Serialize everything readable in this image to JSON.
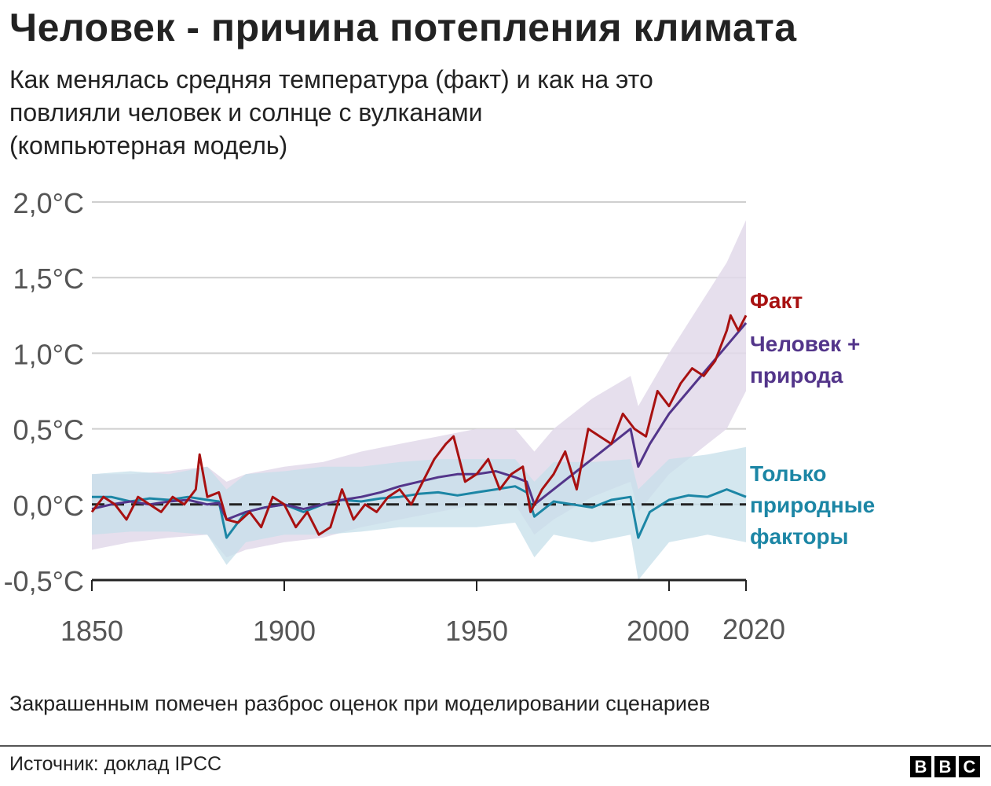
{
  "header": {
    "title": "Человек - причина потепления климата",
    "subtitle_lines": [
      "Как менялась средняя температура (факт) и как на это",
      "повлияли человек и солнце с вулканами",
      "(компьютерная модель)"
    ]
  },
  "footer": {
    "note": "Закрашенным помечен разброс оценок при моделировании сценариев",
    "source": "Источник: доклад IPCC",
    "logo": [
      "B",
      "B",
      "C"
    ]
  },
  "colors": {
    "observed": "#a81111",
    "human_natural": "#53358a",
    "natural_only": "#1c86a5",
    "human_band": "#e2d9ea",
    "natural_band": "#c6dfea",
    "grid": "#cfcfcf",
    "axis": "#222222",
    "zero_line": "#222222"
  },
  "chart_data": {
    "type": "line",
    "title": "Человек - причина потепления климата",
    "xlabel": "",
    "ylabel": "",
    "xlim": [
      1850,
      2020
    ],
    "ylim": [
      -0.5,
      2.0
    ],
    "x_ticks": [
      1850,
      1900,
      1950,
      2000,
      2020
    ],
    "y_ticks": [
      -0.5,
      0.0,
      0.5,
      1.0,
      1.5,
      2.0
    ],
    "y_tick_labels": [
      "-0,5°C",
      "0,0°C",
      "0,5°C",
      "1,0°C",
      "1,5°C",
      "2,0°C"
    ],
    "grid": true,
    "reference_line": 0.0,
    "series": [
      {
        "name": "Факт",
        "label_lines": [
          "Факт"
        ],
        "x": [
          1850,
          1853,
          1856,
          1859,
          1862,
          1865,
          1868,
          1871,
          1874,
          1877,
          1878,
          1880,
          1883,
          1885,
          1888,
          1891,
          1894,
          1897,
          1900,
          1903,
          1906,
          1909,
          1912,
          1915,
          1918,
          1921,
          1924,
          1927,
          1930,
          1933,
          1936,
          1939,
          1942,
          1944,
          1947,
          1950,
          1953,
          1956,
          1959,
          1962,
          1964,
          1967,
          1970,
          1973,
          1976,
          1979,
          1982,
          1985,
          1988,
          1991,
          1994,
          1997,
          2000,
          2003,
          2006,
          2009,
          2012,
          2015,
          2016,
          2018,
          2020
        ],
        "values": [
          -0.05,
          0.05,
          0.0,
          -0.1,
          0.05,
          0.0,
          -0.05,
          0.05,
          0.0,
          0.1,
          0.33,
          0.05,
          0.08,
          -0.1,
          -0.12,
          -0.05,
          -0.15,
          0.05,
          0.0,
          -0.15,
          -0.05,
          -0.2,
          -0.15,
          0.1,
          -0.1,
          0.0,
          -0.05,
          0.05,
          0.1,
          0.0,
          0.15,
          0.3,
          0.4,
          0.45,
          0.15,
          0.2,
          0.3,
          0.1,
          0.2,
          0.25,
          -0.05,
          0.1,
          0.2,
          0.35,
          0.1,
          0.5,
          0.45,
          0.4,
          0.6,
          0.5,
          0.45,
          0.75,
          0.65,
          0.8,
          0.9,
          0.85,
          0.95,
          1.15,
          1.25,
          1.15,
          1.25
        ]
      },
      {
        "name": "Человек + природа",
        "label_lines": [
          "Человек +",
          "природа"
        ],
        "x": [
          1850,
          1855,
          1860,
          1865,
          1870,
          1875,
          1880,
          1883,
          1885,
          1890,
          1895,
          1900,
          1905,
          1910,
          1915,
          1920,
          1925,
          1930,
          1935,
          1940,
          1945,
          1950,
          1955,
          1960,
          1963,
          1965,
          1970,
          1975,
          1980,
          1985,
          1990,
          1992,
          1995,
          2000,
          2005,
          2010,
          2015,
          2020
        ],
        "values": [
          -0.03,
          0.0,
          0.02,
          0.0,
          0.02,
          0.03,
          0.0,
          0.01,
          -0.1,
          -0.05,
          -0.02,
          0.0,
          -0.03,
          0.0,
          0.03,
          0.05,
          0.08,
          0.12,
          0.15,
          0.18,
          0.2,
          0.2,
          0.22,
          0.18,
          0.15,
          0.0,
          0.1,
          0.2,
          0.3,
          0.4,
          0.5,
          0.25,
          0.4,
          0.6,
          0.75,
          0.9,
          1.05,
          1.2
        ]
      },
      {
        "name": "Только природные факторы",
        "label_lines": [
          "Только",
          "природные",
          "факторы"
        ],
        "x": [
          1850,
          1855,
          1860,
          1865,
          1870,
          1875,
          1880,
          1883,
          1885,
          1890,
          1895,
          1900,
          1905,
          1910,
          1915,
          1920,
          1925,
          1930,
          1935,
          1940,
          1945,
          1950,
          1955,
          1960,
          1963,
          1965,
          1970,
          1975,
          1980,
          1985,
          1990,
          1992,
          1995,
          2000,
          2005,
          2010,
          2015,
          2020
        ],
        "values": [
          0.05,
          0.05,
          0.02,
          0.04,
          0.03,
          0.05,
          0.03,
          0.02,
          -0.22,
          -0.05,
          -0.02,
          0.0,
          -0.05,
          0.0,
          0.03,
          0.02,
          0.04,
          0.05,
          0.07,
          0.08,
          0.06,
          0.08,
          0.1,
          0.12,
          0.08,
          -0.08,
          0.02,
          0.0,
          -0.02,
          0.03,
          0.05,
          -0.22,
          -0.05,
          0.03,
          0.06,
          0.05,
          0.1,
          0.05
        ]
      }
    ],
    "bands": [
      {
        "name": "Человек + природа (разброс)",
        "x": [
          1850,
          1860,
          1870,
          1880,
          1885,
          1890,
          1900,
          1910,
          1920,
          1930,
          1940,
          1950,
          1960,
          1965,
          1970,
          1980,
          1990,
          1992,
          2000,
          2010,
          2015,
          2020
        ],
        "low": [
          -0.3,
          -0.25,
          -0.22,
          -0.2,
          -0.35,
          -0.3,
          -0.25,
          -0.22,
          -0.15,
          -0.1,
          -0.05,
          0.0,
          0.0,
          -0.2,
          -0.1,
          0.05,
          0.15,
          -0.05,
          0.2,
          0.4,
          0.5,
          0.75
        ],
        "high": [
          0.2,
          0.2,
          0.22,
          0.25,
          0.15,
          0.2,
          0.25,
          0.28,
          0.35,
          0.4,
          0.45,
          0.5,
          0.5,
          0.35,
          0.5,
          0.7,
          0.85,
          0.65,
          1.0,
          1.4,
          1.6,
          1.88
        ]
      },
      {
        "name": "Только природные факторы (разброс)",
        "x": [
          1850,
          1860,
          1870,
          1880,
          1885,
          1890,
          1900,
          1910,
          1920,
          1930,
          1940,
          1950,
          1960,
          1965,
          1970,
          1980,
          1990,
          1992,
          2000,
          2010,
          2020
        ],
        "low": [
          -0.2,
          -0.18,
          -0.18,
          -0.2,
          -0.4,
          -0.25,
          -0.2,
          -0.2,
          -0.18,
          -0.15,
          -0.15,
          -0.15,
          -0.12,
          -0.35,
          -0.2,
          -0.25,
          -0.2,
          -0.5,
          -0.25,
          -0.2,
          -0.25
        ],
        "high": [
          0.2,
          0.22,
          0.2,
          0.25,
          0.1,
          0.2,
          0.22,
          0.25,
          0.25,
          0.28,
          0.3,
          0.3,
          0.3,
          0.15,
          0.28,
          0.28,
          0.3,
          0.1,
          0.3,
          0.33,
          0.38
        ]
      }
    ]
  }
}
